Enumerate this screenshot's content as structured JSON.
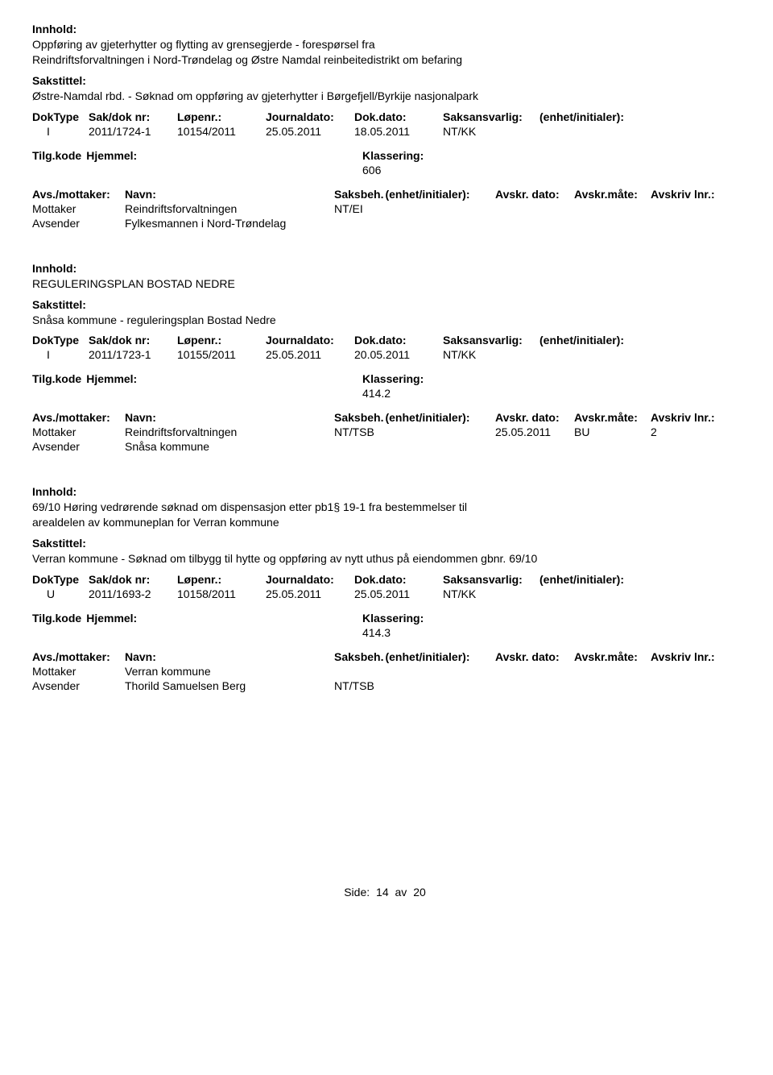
{
  "labels": {
    "innhold": "Innhold:",
    "sakstittel": "Sakstittel:",
    "doktype": "DokType",
    "sakdoknr": "Sak/dok nr:",
    "lopenr": "Løpenr.:",
    "journaldato": "Journaldato:",
    "dokdato": "Dok.dato:",
    "saksansvarlig": "Saksansvarlig:",
    "enhet": "(enhet/initialer):",
    "tilgkode": "Tilg.kode",
    "hjemmel": "Hjemmel:",
    "klassering": "Klassering:",
    "avsmottaker": "Avs./mottaker:",
    "navn": "Navn:",
    "saksbeh": "Saksbeh.",
    "enhet2": "(enhet/initialer):",
    "avskrdato": "Avskr. dato:",
    "avskrmate": "Avskr.måte:",
    "avskrlnr": "Avskriv lnr.:"
  },
  "records": [
    {
      "innhold": "Oppføring av gjeterhytter og flytting av grensegjerde - forespørsel fra Reindriftsforvaltningen i Nord-Trøndelag og Østre Namdal reinbeitedistrikt om befaring",
      "sakstittel": "Østre-Namdal rbd. - Søknad om oppføring av gjeterhytter i Børgefjell/Byrkije nasjonalpark",
      "doktype": "I",
      "sakdoknr": "2011/1724-1",
      "lopenr": "10154/2011",
      "journaldato": "25.05.2011",
      "dokdato": "18.05.2011",
      "saksansvarlig": "NT/KK",
      "klassering": "606",
      "parties": [
        {
          "role": "Mottaker",
          "name": "Reindriftsforvaltningen",
          "saksbeh": "NT/EI",
          "avskrdato": "",
          "avskrmate": "",
          "avskrlnr": ""
        },
        {
          "role": "Avsender",
          "name": "Fylkesmannen i Nord-Trøndelag",
          "saksbeh": "",
          "avskrdato": "",
          "avskrmate": "",
          "avskrlnr": ""
        }
      ]
    },
    {
      "innhold": "REGULERINGSPLAN BOSTAD NEDRE",
      "sakstittel": "Snåsa kommune - reguleringsplan Bostad Nedre",
      "doktype": "I",
      "sakdoknr": "2011/1723-1",
      "lopenr": "10155/2011",
      "journaldato": "25.05.2011",
      "dokdato": "20.05.2011",
      "saksansvarlig": "NT/KK",
      "klassering": "414.2",
      "parties": [
        {
          "role": "Mottaker",
          "name": "Reindriftsforvaltningen",
          "saksbeh": "NT/TSB",
          "avskrdato": "25.05.2011",
          "avskrmate": "BU",
          "avskrlnr": "2"
        },
        {
          "role": "Avsender",
          "name": "Snåsa kommune",
          "saksbeh": "",
          "avskrdato": "",
          "avskrmate": "",
          "avskrlnr": ""
        }
      ]
    },
    {
      "innhold": "69/10 Høring vedrørende søknad om dispensasjon etter pb1§ 19-1 fra bestemmelser til arealdelen av kommuneplan for Verran kommune",
      "sakstittel": "Verran kommune - Søknad om tilbygg til hytte og oppføring av nytt uthus på eiendommen gbnr. 69/10",
      "doktype": "U",
      "sakdoknr": "2011/1693-2",
      "lopenr": "10158/2011",
      "journaldato": "25.05.2011",
      "dokdato": "25.05.2011",
      "saksansvarlig": "NT/KK",
      "klassering": "414.3",
      "parties": [
        {
          "role": "Mottaker",
          "name": "Verran kommune",
          "saksbeh": "",
          "avskrdato": "",
          "avskrmate": "",
          "avskrlnr": ""
        },
        {
          "role": "Avsender",
          "name": "Thorild Samuelsen Berg",
          "saksbeh": "NT/TSB",
          "avskrdato": "",
          "avskrmate": "",
          "avskrlnr": ""
        }
      ]
    }
  ],
  "footer": {
    "prefix": "Side:",
    "current": "14",
    "sep": "av",
    "total": "20"
  }
}
